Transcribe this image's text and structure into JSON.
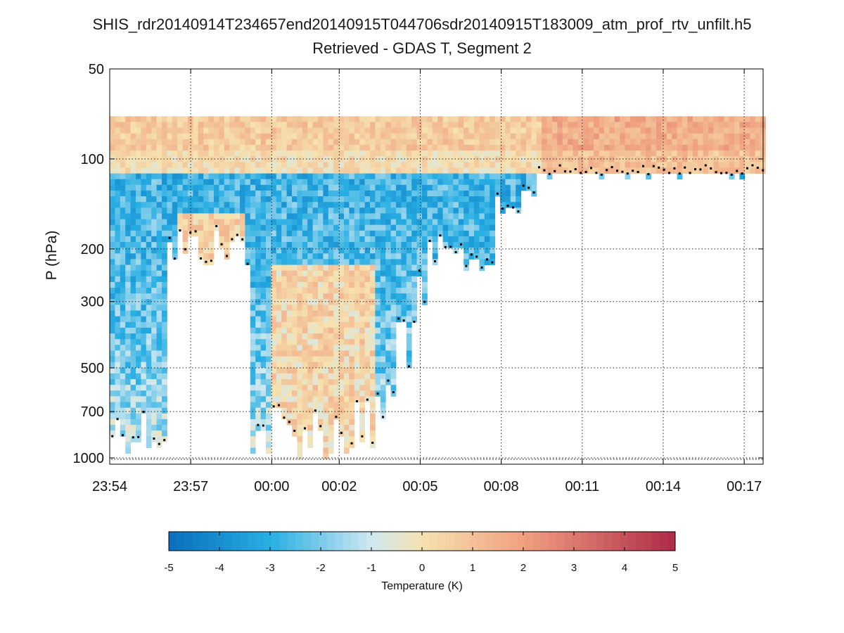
{
  "chart_data": {
    "type": "heatmap",
    "title": "SHIS_rdr20140914T234657end20140915T044706sdr20140915T183009_atm_prof_rtv_unfilt.h5",
    "subtitle": "Retrieved - GDAS T, Segment 2",
    "ylabel": "P (hPa)",
    "xlabel": "",
    "y_scale": "log",
    "y_inverted": true,
    "ylim": [
      50,
      1050
    ],
    "y_ticks": [
      50,
      100,
      200,
      300,
      500,
      700,
      1000
    ],
    "y_tick_labels": [
      "50",
      "100",
      "200",
      "300",
      "500",
      "700",
      "1000"
    ],
    "x_range_minutes": [
      0,
      24.2
    ],
    "x_ticks": [
      0,
      3,
      6,
      8.5,
      11.5,
      14.5,
      17.5,
      20.5,
      23.5
    ],
    "x_tick_labels": [
      "23:54",
      "23:57",
      "00:00",
      "00:02",
      "00:05",
      "00:08",
      "00:11",
      "00:14",
      "00:17"
    ],
    "grid": true,
    "colorbar": {
      "label": "Temperature (K)",
      "range": [
        -5,
        5
      ],
      "ticks": [
        "-5",
        "-4",
        "-3",
        "-2",
        "-1",
        "0",
        "1",
        "2",
        "3",
        "4",
        "5"
      ],
      "colormap": "blue-white-red",
      "colors": [
        "#0a6fbd",
        "#27aee3",
        "#cfe8f0",
        "#f6e2b0",
        "#f0a080",
        "#ae2a48"
      ]
    },
    "tropopause_markers_color": "#000000",
    "surface_markers_color": "#888888"
  }
}
